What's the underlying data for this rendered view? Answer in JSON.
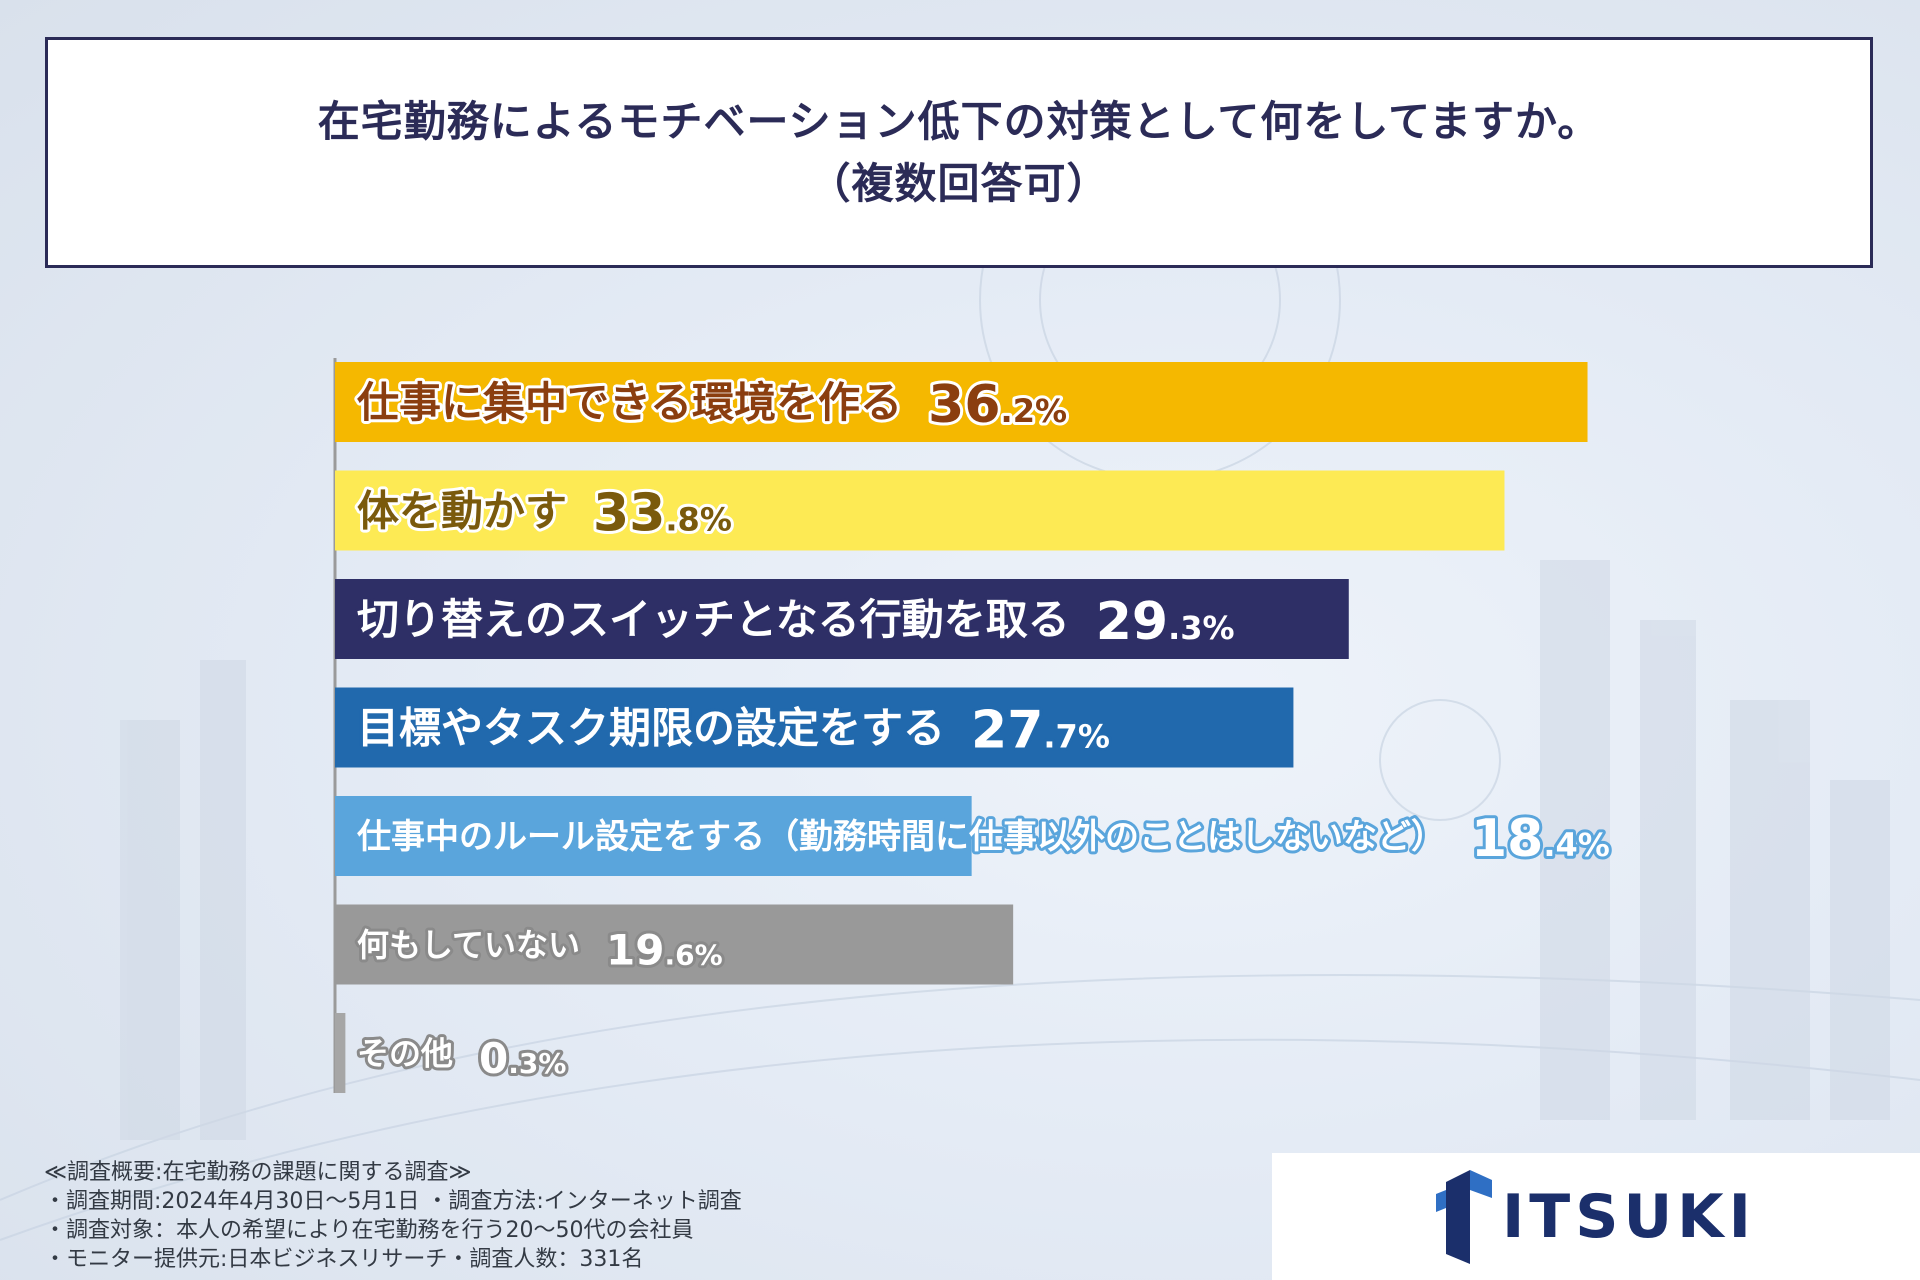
{
  "title": {
    "line1": "在宅勤務によるモチベーション低下の対策として何をしてますか。",
    "line2": "（複数回答可）"
  },
  "colors": {
    "title_border": "#2b2b57",
    "title_text": "#2b2b57",
    "logo_text": "#1b2f6b"
  },
  "chart_data": {
    "type": "bar",
    "orientation": "horizontal",
    "title": "在宅勤務によるモチベーション低下の対策として何をしてますか。（複数回答可）",
    "unit": "%",
    "xlim": [
      0,
      40
    ],
    "grid": false,
    "categories": [
      "仕事に集中できる環境を作る",
      "体を動かす",
      "切り替えのスイッチとなる行動を取る",
      "目標やタスク期限の設定をする",
      "仕事中のルール設定をする（勤務時間に仕事以外のことはしないなど）",
      "何もしていない",
      "その他"
    ],
    "values": [
      36.2,
      33.8,
      29.3,
      27.7,
      18.4,
      19.6,
      0.3
    ],
    "value_int": [
      "36",
      "33",
      "29",
      "27",
      "18",
      "19",
      "0"
    ],
    "value_dec": [
      ".2%",
      ".8%",
      ".3%",
      ".7%",
      ".4%",
      ".6%",
      ".3%"
    ],
    "bar_colors": [
      "#f5b800",
      "#fdea54",
      "#2e2f66",
      "#2169ad",
      "#5aa5dc",
      "#999999",
      "#a6a6a6"
    ],
    "text_colors": [
      "#8b3e0f",
      "#7a5a0c",
      "#ffffff",
      "#ffffff",
      "#ffffff",
      "#ffffff",
      "#ffffff"
    ],
    "outline_colors": [
      "#ffffff",
      "#ffffff",
      "#2e2f66",
      "#2169ad",
      "#5aa5dc",
      "#8a8a8a",
      "#8a8a8a"
    ]
  },
  "notes": [
    "≪調査概要:在宅勤務の課題に関する調査≫",
    "・調査期間:2024年4月30日～5月1日 ・調査方法:インターネット調査",
    "・調査対象：本人の希望により在宅勤務を行う20～50代の会社員",
    "・モニター提供元:日本ビジネスリサーチ・調査人数：331名"
  ],
  "logo": {
    "text": "ITSUKI",
    "mark": "itsuki-logo-mark"
  }
}
